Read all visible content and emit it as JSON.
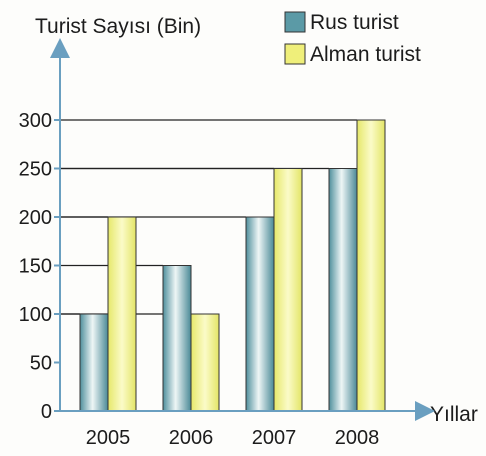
{
  "chart_data": {
    "type": "bar",
    "ylabel": "Turist Sayısı (Bin)",
    "xlabel": "Yıllar",
    "categories": [
      "2005",
      "2006",
      "2007",
      "2008"
    ],
    "series": [
      {
        "name": "Rus turist",
        "values": [
          100,
          150,
          200,
          250
        ],
        "color": "#5b9aa6"
      },
      {
        "name": "Alman turist",
        "values": [
          200,
          100,
          250,
          300
        ],
        "color": "#efef7a"
      }
    ],
    "ylim": [
      0,
      300
    ],
    "yticks": [
      0,
      50,
      100,
      150,
      200,
      250,
      300
    ],
    "grid": "reference lines from bar tops to y-axis",
    "legend_position": "top-right"
  }
}
